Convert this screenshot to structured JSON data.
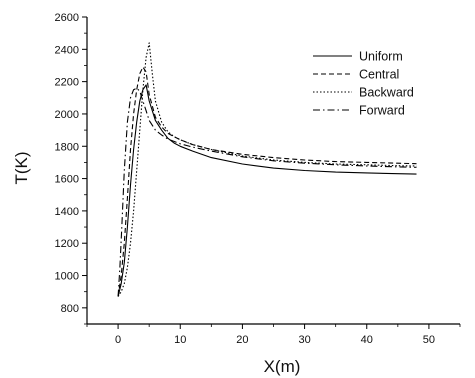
{
  "chart_data": {
    "type": "line",
    "title": "",
    "xlabel": "X(m)",
    "ylabel": "T(K)",
    "xlim": [
      -5,
      55
    ],
    "ylim": [
      700,
      2600
    ],
    "xticks": [
      0,
      10,
      20,
      30,
      40,
      50
    ],
    "yticks": [
      800,
      1000,
      1200,
      1400,
      1600,
      1800,
      2000,
      2200,
      2400,
      2600
    ],
    "grid": false,
    "legend_position": "top-right",
    "series": [
      {
        "name": "Uniform",
        "style": "solid",
        "x": [
          0,
          0.5,
          1,
          1.5,
          2,
          2.5,
          3,
          3.5,
          4,
          4.5,
          5,
          6,
          7,
          8,
          9,
          10,
          12,
          15,
          20,
          25,
          30,
          35,
          40,
          45,
          48
        ],
        "y": [
          870,
          950,
          1080,
          1300,
          1560,
          1780,
          1950,
          2080,
          2150,
          2180,
          2080,
          1960,
          1900,
          1850,
          1820,
          1800,
          1770,
          1730,
          1690,
          1665,
          1650,
          1640,
          1635,
          1630,
          1628
        ]
      },
      {
        "name": "Central",
        "style": "dashed",
        "x": [
          0,
          0.5,
          1,
          1.5,
          2,
          2.5,
          3,
          3.5,
          4,
          4.5,
          5,
          6,
          7,
          8,
          9,
          10,
          12,
          15,
          20,
          25,
          30,
          35,
          40,
          45,
          48
        ],
        "y": [
          870,
          1000,
          1200,
          1480,
          1780,
          2000,
          2150,
          2250,
          2290,
          2260,
          2120,
          1980,
          1920,
          1880,
          1860,
          1840,
          1810,
          1780,
          1750,
          1730,
          1715,
          1705,
          1700,
          1695,
          1692
        ]
      },
      {
        "name": "Backward",
        "style": "dotted",
        "x": [
          0,
          0.5,
          1,
          1.5,
          2,
          2.5,
          3,
          3.5,
          4,
          4.5,
          5,
          5.5,
          6,
          7,
          8,
          9,
          10,
          12,
          15,
          20,
          25,
          30,
          35,
          40,
          45,
          48
        ],
        "y": [
          870,
          900,
          950,
          1050,
          1200,
          1400,
          1650,
          1900,
          2150,
          2350,
          2440,
          2250,
          2080,
          1950,
          1890,
          1860,
          1840,
          1810,
          1780,
          1740,
          1715,
          1700,
          1690,
          1685,
          1680,
          1678
        ]
      },
      {
        "name": "Forward",
        "style": "dashdot",
        "x": [
          0,
          0.3,
          0.6,
          1,
          1.5,
          2,
          2.5,
          3,
          3.5,
          4,
          4.5,
          5,
          6,
          7,
          8,
          9,
          10,
          12,
          15,
          20,
          25,
          30,
          35,
          40,
          45,
          48
        ],
        "y": [
          870,
          1050,
          1300,
          1650,
          1950,
          2100,
          2150,
          2160,
          2140,
          2080,
          2020,
          1960,
          1900,
          1870,
          1845,
          1830,
          1815,
          1795,
          1770,
          1735,
          1710,
          1695,
          1685,
          1678,
          1672,
          1670
        ]
      }
    ]
  }
}
